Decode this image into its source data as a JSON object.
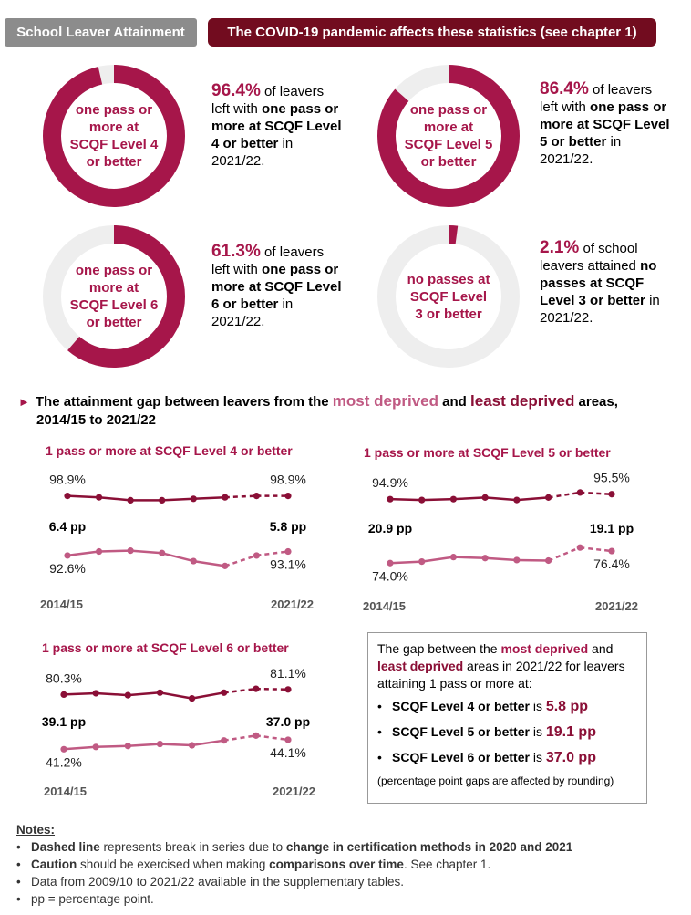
{
  "header": {
    "left_badge": "School Leaver Attainment",
    "right_badge": "The COVID-19 pandemic affects these statistics (see chapter 1)"
  },
  "colors": {
    "primary": "#a6164a",
    "most_deprived": "#c05a83",
    "least_deprived": "#8a0f36",
    "track": "#eeeeee",
    "dark_badge": "#720c1f",
    "grey_badge": "#8c8c8c"
  },
  "donuts": [
    {
      "value": 96.4,
      "label": "one pass or more at SCQF Level 4 or better",
      "pct_text": "96.4%",
      "after_pct": "of leavers",
      "line2": "left with ",
      "bold": "one pass or more at SCQF Level 4 or better",
      "tail": "in 2021/22."
    },
    {
      "value": 86.4,
      "label": "one pass or more at SCQF Level 5 or better",
      "pct_text": "86.4%",
      "after_pct": "of leavers",
      "line2": "left with ",
      "bold": "one pass or more at SCQF Level 5 or better",
      "tail": "in 2021/22."
    },
    {
      "value": 61.3,
      "label": "one pass or more at SCQF Level 6 or better",
      "pct_text": "61.3%",
      "after_pct": "of leavers",
      "line2": "left with ",
      "bold": "one pass or more at SCQF Level 6 or better",
      "tail": "in 2021/22."
    },
    {
      "value": 2.1,
      "label": "no passes at SCQF Level 3 or better",
      "pct_text": "2.1%",
      "after_pct": "of school leavers attained",
      "line2": "",
      "bold": "no passes at SCQF Level 3 or better",
      "tail": "in 2021/22."
    }
  ],
  "section": {
    "pre": "The attainment gap between leavers from the",
    "most_deprived": "most deprived",
    "and": "and",
    "least_deprived": "least deprived",
    "post": "areas,",
    "line2": "2014/15 to 2021/22"
  },
  "chart_data": [
    {
      "type": "line",
      "title": "1 pass or more at SCQF Level 4 or better",
      "x_start_label": "2014/15",
      "x_end_label": "2021/22",
      "series": [
        {
          "name": "least deprived",
          "values": [
            98.9,
            98.8,
            98.6,
            98.6,
            98.7,
            98.8,
            98.9,
            98.9
          ],
          "start_label": "98.9%",
          "end_label": "98.9%"
        },
        {
          "name": "most deprived",
          "values": [
            92.6,
            93.1,
            93.2,
            92.9,
            91.9,
            91.3,
            92.6,
            93.1
          ],
          "start_label": "92.6%",
          "end_label": "93.1%"
        }
      ],
      "gap_start": "6.4 pp",
      "gap_end": "5.8 pp",
      "dashed_from_index": 5
    },
    {
      "type": "line",
      "title": "1 pass or more at SCQF Level 5 or better",
      "x_start_label": "2014/15",
      "x_end_label": "2021/22",
      "series": [
        {
          "name": "least deprived",
          "values": [
            94.9,
            94.8,
            94.9,
            95.1,
            94.8,
            95.1,
            95.7,
            95.5
          ],
          "start_label": "94.9%",
          "end_label": "95.5%"
        },
        {
          "name": "most deprived",
          "values": [
            74.0,
            74.3,
            75.2,
            75.0,
            74.6,
            74.5,
            77.1,
            76.4
          ],
          "start_label": "74.0%",
          "end_label": "76.4%"
        }
      ],
      "gap_start": "20.9 pp",
      "gap_end": "19.1 pp",
      "dashed_from_index": 5
    },
    {
      "type": "line",
      "title": "1 pass or more at SCQF Level 6 or better",
      "x_start_label": "2014/15",
      "x_end_label": "2021/22",
      "series": [
        {
          "name": "least deprived",
          "values": [
            80.3,
            80.5,
            80.2,
            80.6,
            79.7,
            80.6,
            81.2,
            81.1
          ],
          "start_label": "80.3%",
          "end_label": "81.1%"
        },
        {
          "name": "most deprived",
          "values": [
            41.2,
            41.9,
            42.2,
            42.8,
            42.4,
            43.9,
            45.4,
            44.1
          ],
          "start_label": "41.2%",
          "end_label": "44.1%"
        }
      ],
      "gap_start": "39.1 pp",
      "gap_end": "37.0 pp",
      "dashed_from_index": 5
    }
  ],
  "gap_box": {
    "intro_1": "The gap between the ",
    "most_deprived": "most deprived",
    "and": " and",
    "least_deprived": "least deprived",
    "intro_2": " areas in 2021/22 for leavers attaining 1 pass or more at:",
    "items": [
      {
        "label": "SCQF Level 4 or better",
        "is": " is ",
        "value": "5.8 pp"
      },
      {
        "label": "SCQF Level 5 or better",
        "is": " is ",
        "value": "19.1 pp"
      },
      {
        "label": "SCQF Level 6 or better",
        "is": " is ",
        "value": "37.0 pp"
      }
    ],
    "bullet": "•",
    "footnote": "(percentage point gaps are affected by rounding)"
  },
  "notes": {
    "title": "Notes:",
    "bullet": "•",
    "n1_bold": "Dashed line",
    "n1_mid": " represents break in series due to ",
    "n1_bold2": "change in certification methods in 2020 and 2021",
    "n2_bold": "Caution",
    "n2_mid": " should be exercised when making ",
    "n2_bold2": "comparisons over time",
    "n2_tail": ". See chapter 1.",
    "n3": "Data from 2009/10 to 2021/22 available in the supplementary tables.",
    "n4": "pp = percentage point."
  }
}
